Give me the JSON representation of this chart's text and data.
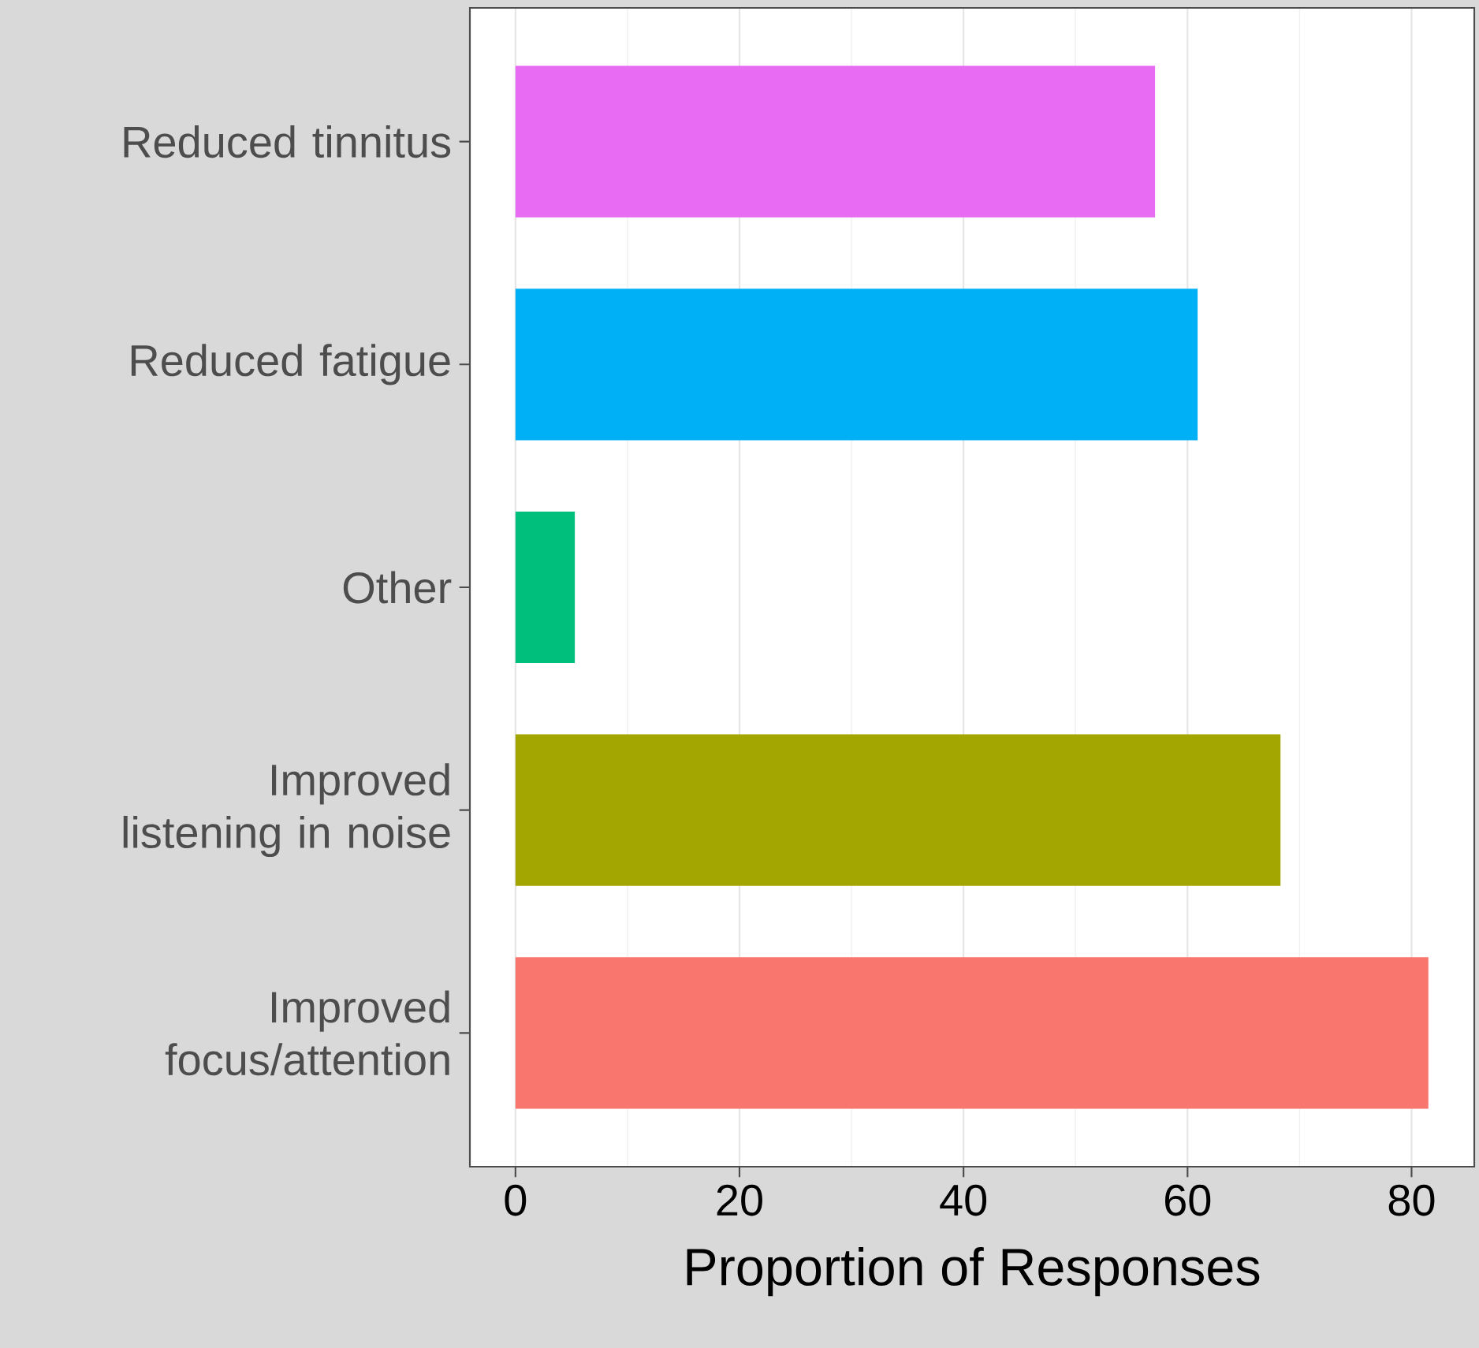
{
  "chart_data": {
    "type": "bar",
    "orientation": "horizontal",
    "xlabel": "Proportion of Responses",
    "categories": [
      "Reduced tinnitus",
      "Reduced fatigue",
      "Other",
      "Improved listening in noise",
      "Improved focus/attention"
    ],
    "values": [
      57.1,
      60.9,
      5.3,
      68.3,
      81.5
    ],
    "colors": [
      "#e76bf3",
      "#00b0f6",
      "#00bf7d",
      "#a3a500",
      "#f8766d"
    ],
    "xlim": [
      -4.07,
      85.6
    ],
    "xticks": [
      0,
      20,
      40,
      60,
      80
    ],
    "grid": "x"
  }
}
